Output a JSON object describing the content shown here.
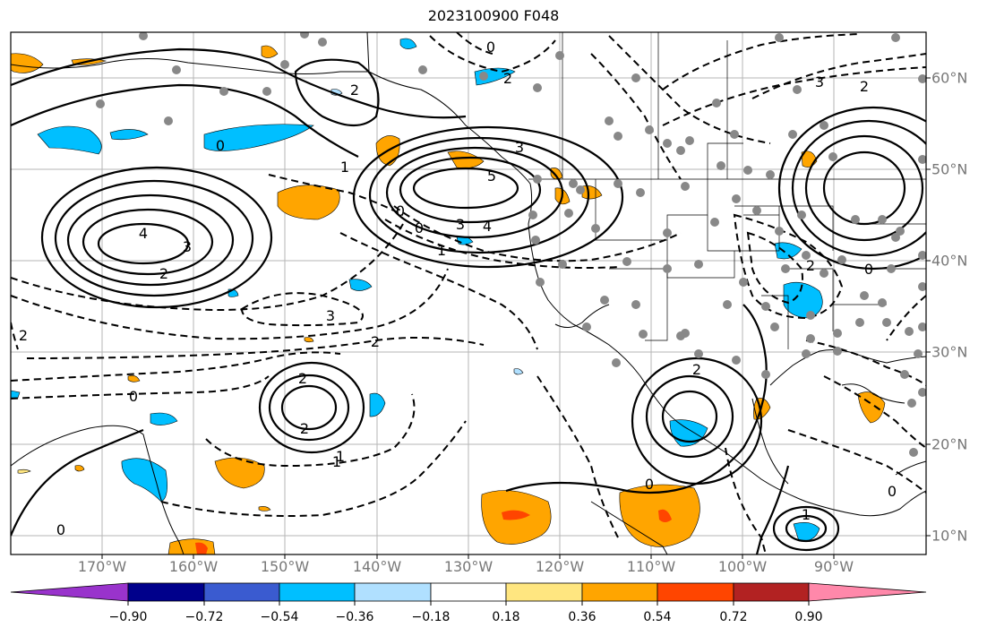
{
  "title": "2023100900 F048",
  "lon_labels": [
    "170°W",
    "160°W",
    "150°W",
    "140°W",
    "130°W",
    "120°W",
    "110°W",
    "100°W",
    "90°W"
  ],
  "lat_labels": [
    "60°N",
    "50°N",
    "40°N",
    "30°N",
    "20°N",
    "10°N"
  ],
  "contour_labels": [
    "4",
    "3",
    "2",
    "0",
    "1",
    "5",
    "4",
    "3",
    "2",
    "0",
    "1",
    "2",
    "0",
    "3",
    "2",
    "0",
    "2",
    "2",
    "0",
    "1",
    "2",
    "3",
    "2",
    "0",
    "0",
    "1",
    "2",
    "3",
    "2",
    "0",
    "1",
    "0"
  ],
  "colorbar": {
    "tick_labels": [
      "−0.90",
      "−0.72",
      "−0.54",
      "−0.36",
      "−0.18",
      "0.18",
      "0.36",
      "0.54",
      "0.72",
      "0.90"
    ],
    "colors": [
      "#9933cc",
      "#00008b",
      "#3a5bd0",
      "#00bfff",
      "#b0e0ff",
      "#ffffff",
      "#ffe680",
      "#ffa500",
      "#ff4500",
      "#b22222",
      "#ff88aa"
    ]
  }
}
